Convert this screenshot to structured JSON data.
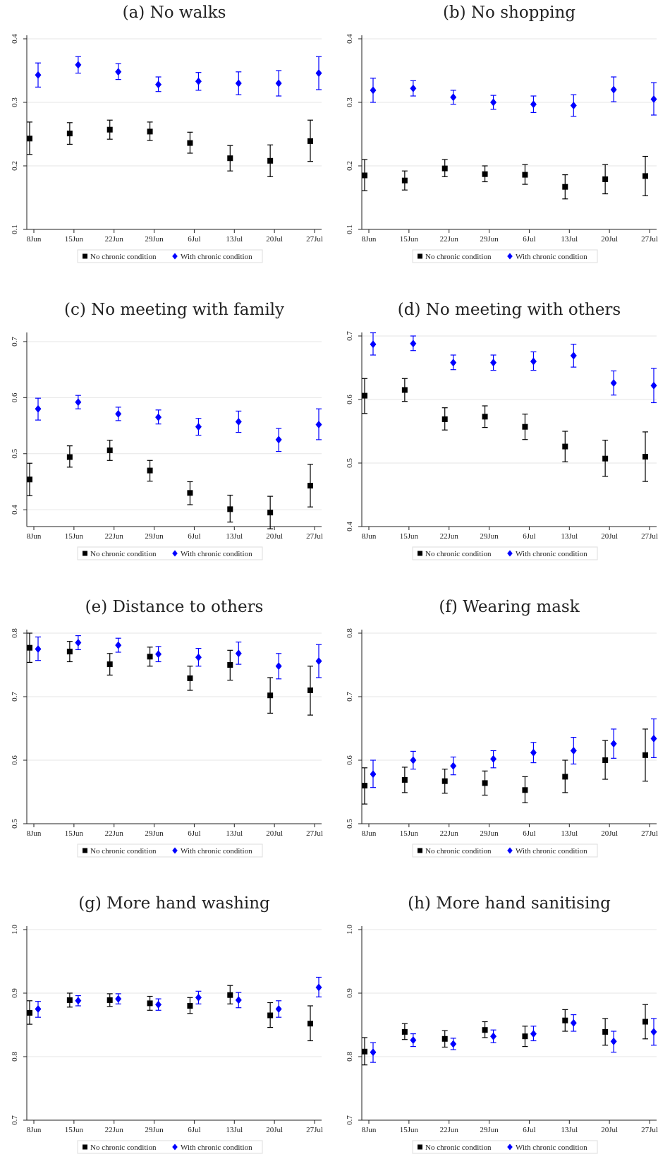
{
  "chart_data": [
    {
      "type": "scatter",
      "title": "(a) No walks",
      "categories": [
        "8Jun",
        "15Jun",
        "22Jun",
        "29Jun",
        "6Jul",
        "13Jul",
        "20Jul",
        "27Jul"
      ],
      "yticks": [
        "0.1",
        "0.2",
        "0.3",
        "0.4"
      ],
      "ylim": [
        0.1,
        0.4
      ],
      "grid": true,
      "legend": "bottom-center",
      "series": [
        {
          "name": "No chronic condition",
          "color": "#000000",
          "marker": "square",
          "values": [
            0.243,
            0.251,
            0.257,
            0.254,
            0.236,
            0.212,
            0.208,
            0.239
          ],
          "ci_low": [
            0.218,
            0.234,
            0.242,
            0.24,
            0.22,
            0.192,
            0.183,
            0.207
          ],
          "ci_high": [
            0.269,
            0.268,
            0.272,
            0.269,
            0.253,
            0.232,
            0.233,
            0.272
          ]
        },
        {
          "name": "With chronic condition",
          "color": "#0000ff",
          "marker": "diamond",
          "values": [
            0.343,
            0.359,
            0.348,
            0.328,
            0.333,
            0.33,
            0.33,
            0.346
          ],
          "ci_low": [
            0.324,
            0.346,
            0.336,
            0.317,
            0.319,
            0.312,
            0.31,
            0.32
          ],
          "ci_high": [
            0.362,
            0.372,
            0.361,
            0.34,
            0.347,
            0.348,
            0.35,
            0.372
          ]
        }
      ]
    },
    {
      "type": "scatter",
      "title": "(b) No shopping",
      "categories": [
        "8Jun",
        "15Jun",
        "22Jun",
        "29Jun",
        "6Jul",
        "13Jul",
        "20Jul",
        "27Jul"
      ],
      "yticks": [
        "0.1",
        "0.2",
        "0.3",
        "0.4"
      ],
      "ylim": [
        0.1,
        0.4
      ],
      "grid": true,
      "legend": "bottom-center",
      "series": [
        {
          "name": "No chronic condition",
          "color": "#000000",
          "marker": "square",
          "values": [
            0.185,
            0.177,
            0.196,
            0.187,
            0.186,
            0.167,
            0.179,
            0.184
          ],
          "ci_low": [
            0.161,
            0.162,
            0.183,
            0.175,
            0.171,
            0.148,
            0.156,
            0.153
          ],
          "ci_high": [
            0.21,
            0.192,
            0.21,
            0.2,
            0.202,
            0.186,
            0.202,
            0.215
          ]
        },
        {
          "name": "With chronic condition",
          "color": "#0000ff",
          "marker": "diamond",
          "values": [
            0.319,
            0.322,
            0.308,
            0.3,
            0.297,
            0.295,
            0.32,
            0.305
          ],
          "ci_low": [
            0.3,
            0.31,
            0.297,
            0.289,
            0.284,
            0.278,
            0.301,
            0.28
          ],
          "ci_high": [
            0.338,
            0.334,
            0.319,
            0.311,
            0.31,
            0.312,
            0.34,
            0.331
          ]
        }
      ]
    },
    {
      "type": "scatter",
      "title": "(c) No meeting with family",
      "categories": [
        "8Jun",
        "15Jun",
        "22Jun",
        "29Jun",
        "6Jul",
        "13Jul",
        "20Jul",
        "27Jul"
      ],
      "yticks": [
        "0.4",
        "0.5",
        "0.6",
        "0.7"
      ],
      "ylim": [
        0.37,
        0.71
      ],
      "grid": true,
      "legend": "bottom-center",
      "series": [
        {
          "name": "No chronic condition",
          "color": "#000000",
          "marker": "square",
          "values": [
            0.454,
            0.494,
            0.506,
            0.47,
            0.43,
            0.401,
            0.395,
            0.443
          ],
          "ci_low": [
            0.425,
            0.476,
            0.488,
            0.451,
            0.409,
            0.378,
            0.366,
            0.405
          ],
          "ci_high": [
            0.483,
            0.514,
            0.524,
            0.488,
            0.45,
            0.426,
            0.424,
            0.481
          ]
        },
        {
          "name": "With chronic condition",
          "color": "#0000ff",
          "marker": "diamond",
          "values": [
            0.58,
            0.592,
            0.571,
            0.565,
            0.548,
            0.557,
            0.525,
            0.552
          ],
          "ci_low": [
            0.56,
            0.58,
            0.559,
            0.553,
            0.533,
            0.538,
            0.504,
            0.525
          ],
          "ci_high": [
            0.599,
            0.604,
            0.583,
            0.578,
            0.563,
            0.576,
            0.545,
            0.58
          ]
        }
      ]
    },
    {
      "type": "scatter",
      "title": "(d) No meeting with others",
      "categories": [
        "8Jun",
        "15Jun",
        "22Jun",
        "29Jun",
        "6Jul",
        "13Jul",
        "20Jul",
        "27Jul"
      ],
      "yticks": [
        "0.4",
        "0.5",
        "0.6",
        "0.7"
      ],
      "ylim": [
        0.4,
        0.7
      ],
      "grid": true,
      "legend": "bottom-center",
      "series": [
        {
          "name": "No chronic condition",
          "color": "#000000",
          "marker": "square",
          "values": [
            0.606,
            0.615,
            0.569,
            0.573,
            0.557,
            0.526,
            0.507,
            0.51
          ],
          "ci_low": [
            0.578,
            0.597,
            0.552,
            0.556,
            0.537,
            0.502,
            0.479,
            0.471
          ],
          "ci_high": [
            0.633,
            0.633,
            0.587,
            0.59,
            0.577,
            0.55,
            0.536,
            0.549
          ]
        },
        {
          "name": "With chronic condition",
          "color": "#0000ff",
          "marker": "diamond",
          "values": [
            0.687,
            0.688,
            0.658,
            0.658,
            0.66,
            0.669,
            0.626,
            0.622
          ],
          "ci_low": [
            0.67,
            0.677,
            0.647,
            0.646,
            0.646,
            0.651,
            0.607,
            0.595
          ],
          "ci_high": [
            0.705,
            0.7,
            0.67,
            0.67,
            0.675,
            0.687,
            0.645,
            0.649
          ]
        }
      ]
    },
    {
      "type": "scatter",
      "title": "(e) Distance to others",
      "categories": [
        "8Jun",
        "15Jun",
        "22Jun",
        "29Jun",
        "6Jul",
        "13Jul",
        "20Jul",
        "27Jul"
      ],
      "yticks": [
        "0.5",
        "0.6",
        "0.7",
        "0.8"
      ],
      "ylim": [
        0.5,
        0.8
      ],
      "grid": true,
      "legend": "bottom-center",
      "series": [
        {
          "name": "No chronic condition",
          "color": "#000000",
          "marker": "square",
          "values": [
            0.777,
            0.771,
            0.751,
            0.763,
            0.729,
            0.75,
            0.702,
            0.71
          ],
          "ci_low": [
            0.754,
            0.755,
            0.734,
            0.748,
            0.71,
            0.726,
            0.674,
            0.671
          ],
          "ci_high": [
            0.8,
            0.787,
            0.768,
            0.778,
            0.748,
            0.773,
            0.73,
            0.748
          ]
        },
        {
          "name": "With chronic condition",
          "color": "#0000ff",
          "marker": "diamond",
          "values": [
            0.775,
            0.785,
            0.781,
            0.767,
            0.762,
            0.768,
            0.748,
            0.756
          ],
          "ci_low": [
            0.757,
            0.774,
            0.77,
            0.755,
            0.748,
            0.751,
            0.728,
            0.73
          ],
          "ci_high": [
            0.794,
            0.796,
            0.792,
            0.779,
            0.776,
            0.786,
            0.768,
            0.782
          ]
        }
      ]
    },
    {
      "type": "scatter",
      "title": "(f) Wearing mask",
      "categories": [
        "8Jun",
        "15Jun",
        "22Jun",
        "29Jun",
        "6Jul",
        "13Jul",
        "20Jul",
        "27Jul"
      ],
      "yticks": [
        "0.5",
        "0.6",
        "0.7",
        "0.8"
      ],
      "ylim": [
        0.5,
        0.8
      ],
      "grid": true,
      "legend": "bottom-center",
      "series": [
        {
          "name": "No chronic condition",
          "color": "#000000",
          "marker": "square",
          "values": [
            0.56,
            0.569,
            0.567,
            0.564,
            0.553,
            0.574,
            0.6,
            0.608
          ],
          "ci_low": [
            0.531,
            0.549,
            0.548,
            0.545,
            0.533,
            0.549,
            0.57,
            0.567
          ],
          "ci_high": [
            0.588,
            0.589,
            0.586,
            0.583,
            0.574,
            0.6,
            0.631,
            0.649
          ]
        },
        {
          "name": "With chronic condition",
          "color": "#0000ff",
          "marker": "diamond",
          "values": [
            0.578,
            0.6,
            0.591,
            0.602,
            0.612,
            0.615,
            0.626,
            0.634
          ],
          "ci_low": [
            0.557,
            0.586,
            0.577,
            0.588,
            0.596,
            0.594,
            0.603,
            0.604
          ],
          "ci_high": [
            0.6,
            0.614,
            0.605,
            0.615,
            0.628,
            0.636,
            0.649,
            0.665
          ]
        }
      ]
    },
    {
      "type": "scatter",
      "title": "(g) More hand washing",
      "categories": [
        "8Jun",
        "15Jun",
        "22Jun",
        "29Jun",
        "6Jul",
        "13Jul",
        "20Jul",
        "27Jul"
      ],
      "yticks": [
        "0.7",
        "0.8",
        "0.9",
        "1.0"
      ],
      "ylim": [
        0.7,
        1.0
      ],
      "grid": true,
      "legend": "bottom-center",
      "series": [
        {
          "name": "No chronic condition",
          "color": "#000000",
          "marker": "square",
          "values": [
            0.869,
            0.889,
            0.889,
            0.884,
            0.88,
            0.897,
            0.865,
            0.852
          ],
          "ci_low": [
            0.851,
            0.878,
            0.879,
            0.873,
            0.868,
            0.883,
            0.846,
            0.825
          ],
          "ci_high": [
            0.888,
            0.9,
            0.899,
            0.895,
            0.893,
            0.912,
            0.885,
            0.88
          ]
        },
        {
          "name": "With chronic condition",
          "color": "#0000ff",
          "marker": "diamond",
          "values": [
            0.875,
            0.888,
            0.891,
            0.882,
            0.893,
            0.889,
            0.875,
            0.909
          ],
          "ci_low": [
            0.862,
            0.88,
            0.883,
            0.873,
            0.883,
            0.877,
            0.862,
            0.894
          ],
          "ci_high": [
            0.887,
            0.896,
            0.899,
            0.891,
            0.903,
            0.901,
            0.888,
            0.925
          ]
        }
      ]
    },
    {
      "type": "scatter",
      "title": "(h) More hand sanitising",
      "categories": [
        "8Jun",
        "15Jun",
        "22Jun",
        "29Jun",
        "6Jul",
        "13Jul",
        "20Jul",
        "27Jul"
      ],
      "yticks": [
        "0.7",
        "0.8",
        "0.9",
        "1.0"
      ],
      "ylim": [
        0.7,
        1.0
      ],
      "grid": true,
      "legend": "bottom-center",
      "series": [
        {
          "name": "No chronic condition",
          "color": "#000000",
          "marker": "square",
          "values": [
            0.808,
            0.839,
            0.828,
            0.842,
            0.832,
            0.857,
            0.839,
            0.855
          ],
          "ci_low": [
            0.787,
            0.827,
            0.815,
            0.83,
            0.816,
            0.84,
            0.818,
            0.828
          ],
          "ci_high": [
            0.83,
            0.852,
            0.841,
            0.855,
            0.848,
            0.874,
            0.86,
            0.882
          ]
        },
        {
          "name": "With chronic condition",
          "color": "#0000ff",
          "marker": "diamond",
          "values": [
            0.807,
            0.826,
            0.82,
            0.832,
            0.836,
            0.853,
            0.824,
            0.839
          ],
          "ci_low": [
            0.791,
            0.816,
            0.811,
            0.822,
            0.825,
            0.84,
            0.807,
            0.818
          ],
          "ci_high": [
            0.822,
            0.836,
            0.829,
            0.842,
            0.848,
            0.866,
            0.84,
            0.86
          ]
        }
      ]
    }
  ]
}
